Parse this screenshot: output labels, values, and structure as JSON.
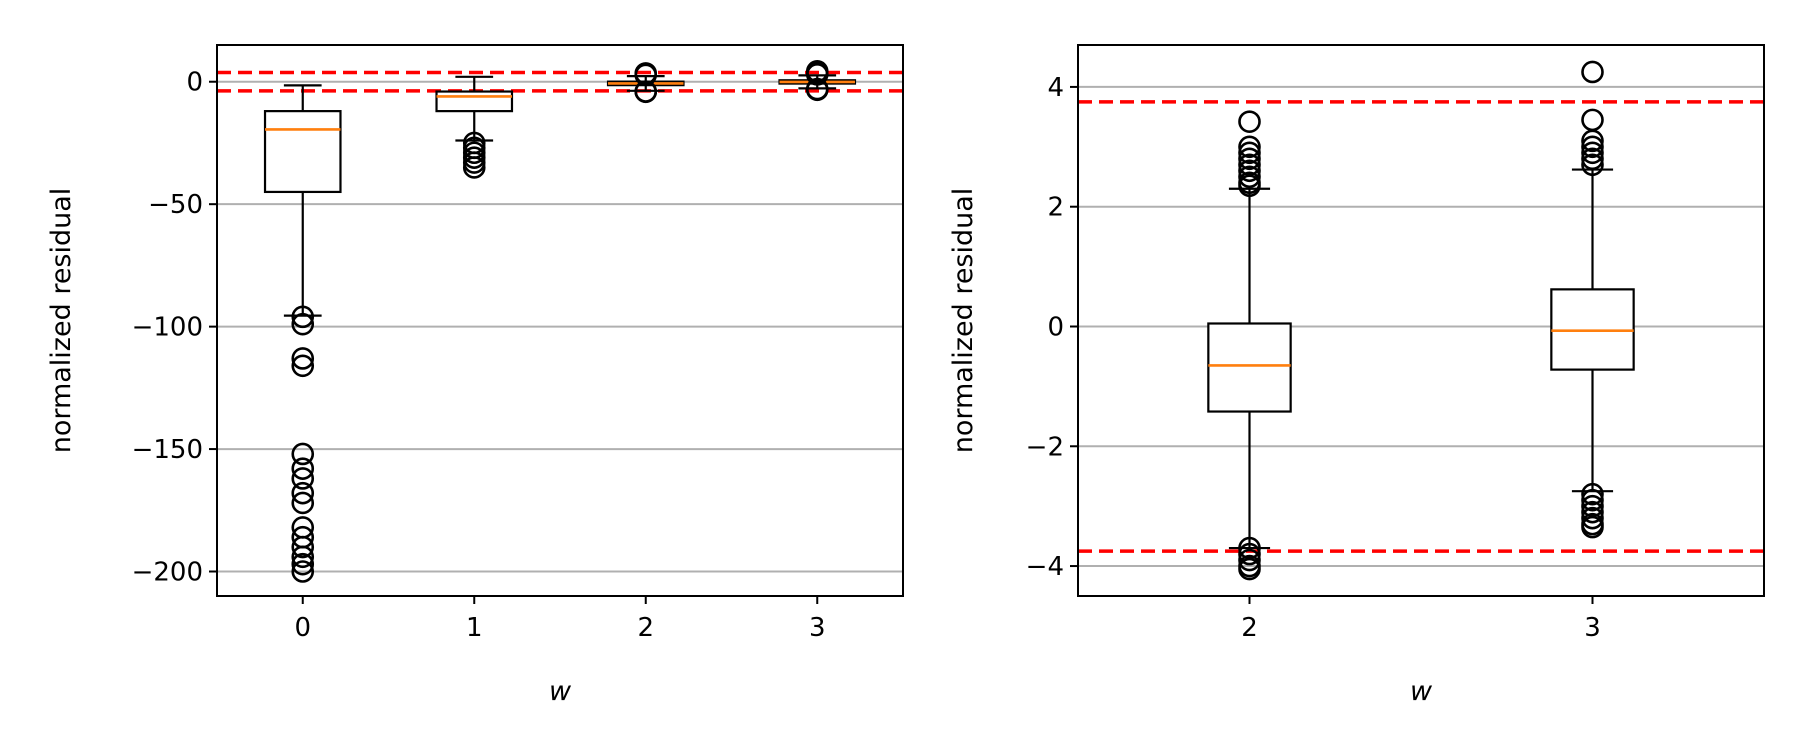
{
  "chart_data": [
    {
      "type": "box",
      "xlabel": "w",
      "ylabel": "normalized residual",
      "ylim": [
        -210,
        15
      ],
      "yticks": [
        0,
        -50,
        -100,
        -150,
        -200
      ],
      "ytick_labels": [
        "0",
        "−50",
        "−100",
        "−150",
        "−200"
      ],
      "grid": "y",
      "threshold_lines": [
        3.75,
        -3.75
      ],
      "threshold_color": "#ff0000",
      "box_color": "#000000",
      "median_color": "#ff7f0e",
      "boxes": [
        {
          "x": "0",
          "whisker_low": -95.5,
          "q1": -45,
          "median": -19.5,
          "q3": -12,
          "whisker_high": -1.5,
          "outliers": [
            -96,
            -99,
            -113,
            -116,
            -152,
            -158,
            -162,
            -168,
            -172,
            -182,
            -186,
            -190,
            -194,
            -197,
            -200
          ]
        },
        {
          "x": "1",
          "whisker_low": -24,
          "q1": -12,
          "median": -6,
          "q3": -4,
          "whisker_high": 2,
          "outliers": [
            -25,
            -27,
            -29,
            -31,
            -33,
            -35
          ]
        },
        {
          "x": "2",
          "whisker_low": -3.7,
          "q1": -1.4,
          "median": -0.7,
          "q3": 0.05,
          "whisker_high": 2.3,
          "outliers": [
            3.4,
            2.8,
            -4.0,
            -4.1
          ]
        },
        {
          "x": "3",
          "whisker_low": -2.7,
          "q1": -0.75,
          "median": -0.1,
          "q3": 0.6,
          "whisker_high": 2.6,
          "outliers": [
            4.25,
            3.4,
            3.0,
            -3.0,
            -3.3
          ]
        }
      ]
    },
    {
      "type": "box",
      "xlabel": "w",
      "ylabel": "normalized residual",
      "ylim": [
        -4.5,
        4.7
      ],
      "yticks": [
        4,
        2,
        0,
        -2,
        -4
      ],
      "ytick_labels": [
        "4",
        "2",
        "0",
        "−2",
        "−4"
      ],
      "grid": "y",
      "threshold_lines": [
        3.75,
        -3.75
      ],
      "threshold_color": "#ff0000",
      "box_color": "#000000",
      "median_color": "#ff7f0e",
      "boxes": [
        {
          "x": "2",
          "whisker_low": -3.7,
          "q1": -1.42,
          "median": -0.65,
          "q3": 0.05,
          "whisker_high": 2.3,
          "outliers": [
            3.42,
            3.0,
            2.9,
            2.8,
            2.7,
            2.6,
            2.5,
            2.4,
            2.35,
            -3.7,
            -3.8,
            -3.9,
            -4.0,
            -4.05
          ]
        },
        {
          "x": "3",
          "whisker_low": -2.75,
          "q1": -0.72,
          "median": -0.07,
          "q3": 0.62,
          "whisker_high": 2.62,
          "outliers": [
            4.25,
            3.45,
            3.1,
            3.0,
            2.9,
            2.8,
            2.7,
            -2.8,
            -2.9,
            -3.0,
            -3.1,
            -3.2,
            -3.3,
            -3.35
          ]
        }
      ]
    }
  ]
}
